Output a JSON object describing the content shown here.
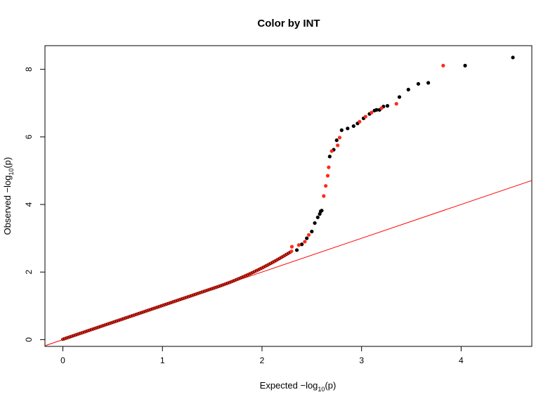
{
  "chart_data": {
    "type": "scatter",
    "title": "Color by INT",
    "xlabel": {
      "prefix": "Expected  −log",
      "sub": "10",
      "suffix": "(p)"
    },
    "ylabel": {
      "prefix": "Observed  −log",
      "sub": "10",
      "suffix": "(p)"
    },
    "xlim": [
      -0.18,
      4.71
    ],
    "ylim": [
      -0.2,
      8.7
    ],
    "xticks": [
      0,
      1,
      2,
      3,
      4
    ],
    "yticks": [
      0,
      2,
      4,
      6,
      8
    ],
    "grid": false,
    "reference_line": {
      "slope": 1,
      "intercept": 0,
      "color": "#ff0000"
    },
    "colors": {
      "black": "#000000",
      "red": "#ff2a1a"
    },
    "series": [
      {
        "color": "black",
        "x": [
          2.35,
          2.4,
          2.45,
          2.5,
          2.53,
          2.56,
          2.58,
          2.59,
          2.6,
          2.68,
          2.72,
          2.75,
          2.8,
          2.86,
          2.92,
          2.96,
          3.02,
          3.08,
          3.13,
          3.15,
          3.18,
          3.22,
          3.26,
          3.38,
          3.47,
          3.57,
          3.67,
          4.04,
          4.52
        ],
        "y": [
          2.65,
          2.82,
          3.0,
          3.2,
          3.45,
          3.62,
          3.72,
          3.8,
          3.82,
          5.42,
          5.62,
          5.9,
          6.2,
          6.25,
          6.32,
          6.4,
          6.55,
          6.68,
          6.78,
          6.8,
          6.8,
          6.9,
          6.92,
          7.18,
          7.4,
          7.57,
          7.6,
          8.11,
          8.35
        ]
      },
      {
        "color": "red",
        "x": [
          2.3,
          2.37,
          2.43,
          2.47,
          2.62,
          2.64,
          2.66,
          2.67,
          2.7,
          2.76,
          2.78,
          2.98,
          3.04,
          3.1,
          3.2,
          3.35,
          3.82
        ],
        "y": [
          2.75,
          2.8,
          2.9,
          3.1,
          4.25,
          4.55,
          4.85,
          5.1,
          5.58,
          5.75,
          5.98,
          6.45,
          6.6,
          6.72,
          6.85,
          6.98,
          8.11
        ]
      }
    ]
  }
}
